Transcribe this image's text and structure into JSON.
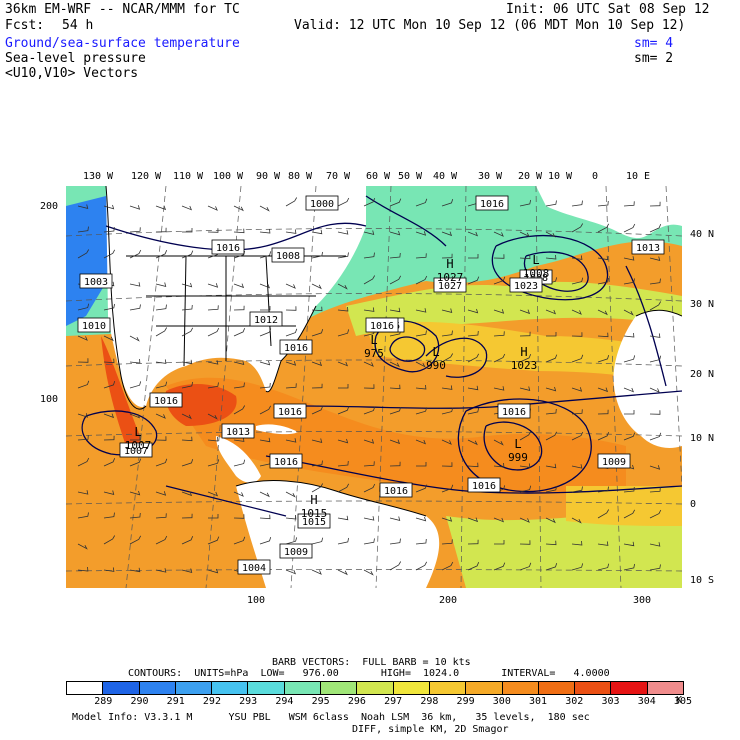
{
  "header": {
    "model": "36km EM-WRF -- NCAR/MMM for TC",
    "init": "Init: 06 UTC Sat 08 Sep 12",
    "fcst_label": "Fcst:",
    "fcst_value": "54 h",
    "valid": "Valid: 12 UTC Mon 10 Sep 12 (06 MDT Mon 10 Sep 12)",
    "field1": "Ground/sea-surface temperature",
    "field1_sm": "sm= 4",
    "field2": "Sea-level pressure",
    "field2_sm": "sm= 2",
    "field3": "<U10,V10> Vectors"
  },
  "colors": {
    "field1": "#1a1aff",
    "contours": "#000050"
  },
  "lon_labels": [
    "130 W",
    "120 W",
    "110 W",
    "100 W",
    "90 W",
    "80 W",
    "70 W",
    "60 W",
    "50 W",
    "40 W",
    "30 W",
    "20 W",
    "10 W",
    "0",
    "10 E"
  ],
  "lat_labels": [
    "40 N",
    "30 N",
    "20 N",
    "10 N",
    "0",
    "10 S"
  ],
  "grid_y_labels": [
    "200",
    "100"
  ],
  "grid_x_labels": [
    "100",
    "200",
    "300"
  ],
  "pressure_labels": [
    "1000",
    "1016",
    "1016",
    "1008",
    "1016",
    "1016",
    "1027",
    "1008",
    "1016",
    "1023",
    "1016",
    "1016",
    "1016",
    "1016",
    "1003",
    "1007",
    "1015",
    "1016",
    "1009",
    "1013",
    "1010",
    "1012",
    "1004",
    "1016",
    "1013",
    "1009"
  ],
  "pressure_centers": [
    {
      "type": "L",
      "value": "975"
    },
    {
      "type": "L",
      "value": "990"
    },
    {
      "type": "H",
      "value": "1023"
    },
    {
      "type": "L",
      "value": "999"
    },
    {
      "type": "L",
      "value": "1008"
    },
    {
      "type": "L",
      "value": "1007"
    },
    {
      "type": "H",
      "value": "1027"
    },
    {
      "type": "H",
      "value": "1015"
    }
  ],
  "footer": {
    "barb": "BARB VECTORS:  FULL BARB = 10 kts",
    "contours": "CONTOURS:  UNITS=hPa  LOW=   976.00       HIGH=  1024.0       INTERVAL=   4.0000",
    "model_info": "Model Info: V3.3.1 M      YSU PBL   WSM 6class  Noah LSM  36 km,   35 levels,  180 sec",
    "diff": "DIFF, simple KM, 2D Smagor",
    "unit": "K"
  },
  "colorbar": {
    "labels": [
      "289",
      "290",
      "291",
      "292",
      "293",
      "294",
      "295",
      "296",
      "297",
      "298",
      "299",
      "300",
      "301",
      "302",
      "303",
      "304",
      "305"
    ],
    "colors": [
      "#ffffff",
      "#1e64e6",
      "#2d82f0",
      "#3ca0f0",
      "#46c3f0",
      "#5adcdc",
      "#78e6b4",
      "#a0e678",
      "#d2e650",
      "#f0e63c",
      "#f5c832",
      "#f5aa28",
      "#f58c1e",
      "#f06e14",
      "#eb5014",
      "#e61414",
      "#f08c8c"
    ]
  }
}
